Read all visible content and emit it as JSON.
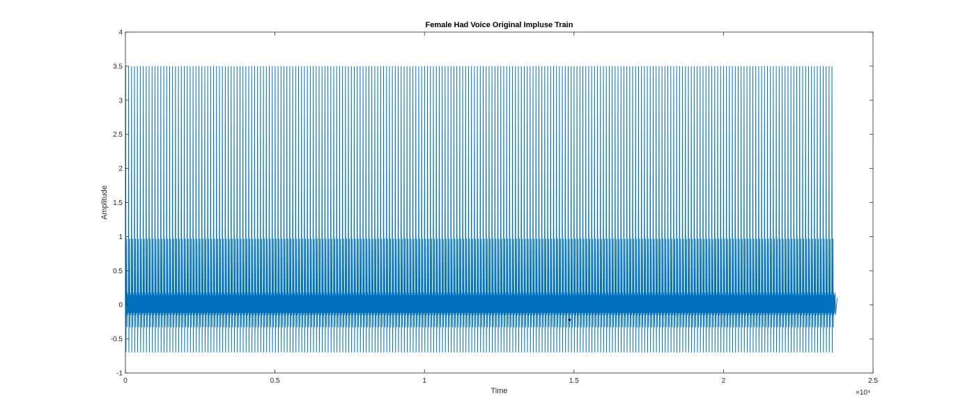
{
  "chart_data": {
    "type": "line",
    "title": "Female Had Voice Original Impluse Train",
    "xlabel": "Time",
    "ylabel": "Amplitude",
    "xlim": [
      0,
      25000
    ],
    "ylim": [
      -1,
      4
    ],
    "x_scale_exponent_label": "×10⁴",
    "x_ticks": [
      0,
      5000,
      10000,
      15000,
      20000,
      25000
    ],
    "x_tick_labels": [
      "0",
      "0.5",
      "1",
      "1.5",
      "2",
      "2.5"
    ],
    "y_ticks": [
      -1,
      -0.5,
      0,
      0.5,
      1,
      1.5,
      2,
      2.5,
      3,
      3.5,
      4
    ],
    "y_tick_labels": [
      "-1",
      "-0.5",
      "0",
      "0.5",
      "1",
      "1.5",
      "2",
      "2.5",
      "3",
      "3.5",
      "4"
    ],
    "grid": false,
    "series": [
      {
        "color": "#0072bd",
        "x_start": 0,
        "x_end": 23800,
        "period_samples": 98,
        "pulse_peak": 3.5,
        "pulse_trough": -0.7,
        "secondary_peak": 0.97,
        "secondary_trough": -0.33,
        "ripple_high": 0.18,
        "ripple_low": -0.15,
        "end_value": 0.1
      }
    ],
    "annotations": [
      {
        "type": "data-marker",
        "x": 14850,
        "y": -0.22,
        "color": "#000000"
      }
    ]
  }
}
